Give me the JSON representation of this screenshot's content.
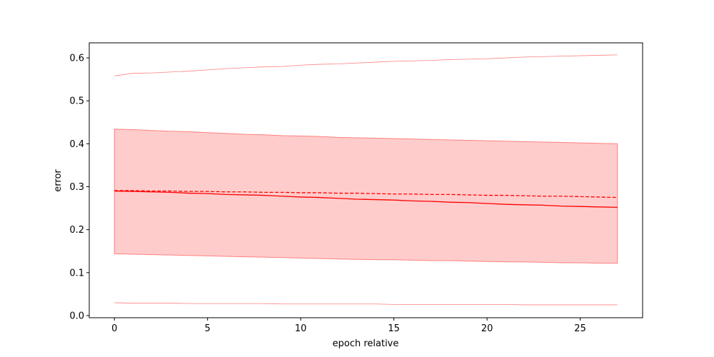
{
  "chart_data": {
    "type": "line",
    "xlabel": "epoch relative",
    "ylabel": "error",
    "xlim": [
      -1.35,
      28.35
    ],
    "ylim": [
      -0.005,
      0.635
    ],
    "xticks": [
      0,
      5,
      10,
      15,
      20,
      25
    ],
    "xtick_labels": [
      "0",
      "5",
      "10",
      "15",
      "20",
      "25"
    ],
    "yticks": [
      0.0,
      0.1,
      0.2,
      0.3,
      0.4,
      0.5,
      0.6
    ],
    "ytick_labels": [
      "0.0",
      "0.1",
      "0.2",
      "0.3",
      "0.4",
      "0.5",
      "0.6"
    ],
    "grid": false,
    "color": "#ff0000",
    "band_fill": "#ffcccc",
    "band_edge": "#ff8080",
    "series": [
      {
        "style": "solid",
        "x": [
          0,
          1,
          2,
          3,
          4,
          5,
          6,
          7,
          8,
          9,
          10,
          11,
          12,
          13,
          14,
          15,
          16,
          17,
          18,
          19,
          20,
          21,
          22,
          23,
          24,
          25,
          26,
          27
        ],
        "values": [
          0.29,
          0.289,
          0.288,
          0.287,
          0.285,
          0.284,
          0.282,
          0.281,
          0.28,
          0.278,
          0.276,
          0.275,
          0.273,
          0.271,
          0.27,
          0.269,
          0.267,
          0.266,
          0.264,
          0.263,
          0.261,
          0.259,
          0.258,
          0.257,
          0.255,
          0.254,
          0.253,
          0.252
        ]
      },
      {
        "style": "dashed",
        "x": [
          0,
          1,
          2,
          3,
          4,
          5,
          6,
          7,
          8,
          9,
          10,
          11,
          12,
          13,
          14,
          15,
          16,
          17,
          18,
          19,
          20,
          21,
          22,
          23,
          24,
          25,
          26,
          27
        ],
        "values": [
          0.291,
          0.291,
          0.29,
          0.29,
          0.289,
          0.289,
          0.288,
          0.288,
          0.287,
          0.287,
          0.286,
          0.286,
          0.285,
          0.285,
          0.284,
          0.283,
          0.283,
          0.282,
          0.282,
          0.281,
          0.28,
          0.28,
          0.279,
          0.278,
          0.278,
          0.277,
          0.276,
          0.275
        ]
      }
    ],
    "band": {
      "x": [
        0,
        1,
        2,
        3,
        4,
        5,
        6,
        7,
        8,
        9,
        10,
        11,
        12,
        13,
        14,
        15,
        16,
        17,
        18,
        19,
        20,
        21,
        22,
        23,
        24,
        25,
        26,
        27
      ],
      "lower": [
        0.144,
        0.143,
        0.142,
        0.141,
        0.14,
        0.139,
        0.138,
        0.137,
        0.136,
        0.135,
        0.134,
        0.133,
        0.132,
        0.131,
        0.13,
        0.13,
        0.129,
        0.128,
        0.128,
        0.127,
        0.126,
        0.125,
        0.125,
        0.124,
        0.123,
        0.123,
        0.122,
        0.122
      ],
      "upper": [
        0.434,
        0.433,
        0.431,
        0.429,
        0.428,
        0.426,
        0.424,
        0.422,
        0.421,
        0.419,
        0.418,
        0.417,
        0.415,
        0.414,
        0.413,
        0.412,
        0.411,
        0.41,
        0.409,
        0.408,
        0.407,
        0.406,
        0.405,
        0.404,
        0.403,
        0.402,
        0.401,
        0.4
      ]
    },
    "outer_lines": [
      {
        "x": [
          0,
          1,
          2,
          3,
          4,
          5,
          6,
          7,
          8,
          9,
          10,
          11,
          12,
          13,
          14,
          15,
          16,
          17,
          18,
          19,
          20,
          21,
          22,
          23,
          24,
          25,
          26,
          27
        ],
        "values": [
          0.558,
          0.564,
          0.565,
          0.567,
          0.569,
          0.572,
          0.575,
          0.577,
          0.579,
          0.58,
          0.583,
          0.585,
          0.586,
          0.588,
          0.59,
          0.592,
          0.593,
          0.594,
          0.596,
          0.597,
          0.598,
          0.6,
          0.602,
          0.603,
          0.604,
          0.605,
          0.606,
          0.607
        ]
      },
      {
        "x": [
          0,
          1,
          2,
          3,
          4,
          5,
          6,
          7,
          8,
          9,
          10,
          11,
          12,
          13,
          14,
          15,
          16,
          17,
          18,
          19,
          20,
          21,
          22,
          23,
          24,
          25,
          26,
          27
        ],
        "values": [
          0.03,
          0.029,
          0.029,
          0.029,
          0.028,
          0.028,
          0.028,
          0.028,
          0.028,
          0.027,
          0.027,
          0.027,
          0.027,
          0.027,
          0.027,
          0.026,
          0.026,
          0.026,
          0.026,
          0.026,
          0.026,
          0.026,
          0.025,
          0.025,
          0.025,
          0.025,
          0.025,
          0.025
        ]
      }
    ]
  }
}
